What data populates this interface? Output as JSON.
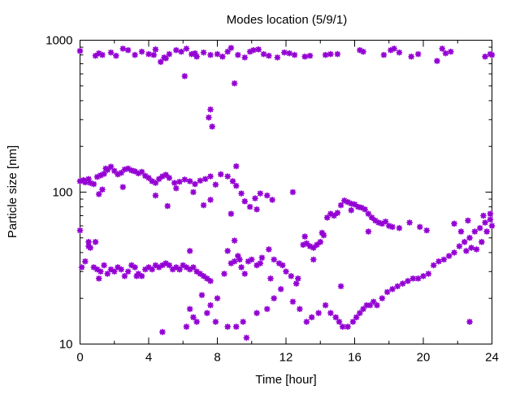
{
  "chart_data": {
    "type": "scatter",
    "title": "Modes location (5/9/1)",
    "xlabel": "Time [hour]",
    "ylabel": "Particle size [nm]",
    "xlim": [
      0,
      24
    ],
    "ylim": [
      10,
      1000
    ],
    "yscale": "log",
    "x_ticks": [
      0,
      4,
      8,
      12,
      16,
      20,
      24
    ],
    "x_tick_labels": [
      "0",
      "4",
      "8",
      "12",
      "16",
      "20",
      "24"
    ],
    "y_ticks": [
      10,
      100,
      1000
    ],
    "y_tick_labels": [
      "10",
      "100",
      "1000"
    ],
    "grid": false,
    "marker_color": "#9400d3",
    "series": [
      {
        "points": [
          [
            0.0,
            850
          ],
          [
            0.9,
            790
          ],
          [
            1.1,
            820
          ],
          [
            1.3,
            800
          ],
          [
            1.8,
            830
          ],
          [
            2.1,
            790
          ],
          [
            2.5,
            880
          ],
          [
            2.8,
            860
          ],
          [
            3.2,
            800
          ],
          [
            3.6,
            840
          ],
          [
            4.0,
            810
          ],
          [
            4.4,
            870
          ],
          [
            4.7,
            720
          ],
          [
            4.9,
            770
          ],
          [
            5.2,
            810
          ],
          [
            5.6,
            860
          ],
          [
            5.9,
            840
          ],
          [
            6.2,
            880
          ],
          [
            6.5,
            810
          ],
          [
            6.8,
            780
          ],
          [
            7.2,
            830
          ],
          [
            7.6,
            800
          ],
          [
            8.0,
            810
          ],
          [
            8.3,
            780
          ],
          [
            8.6,
            840
          ],
          [
            8.8,
            890
          ],
          [
            9.2,
            800
          ],
          [
            9.6,
            770
          ],
          [
            9.9,
            840
          ],
          [
            10.1,
            860
          ],
          [
            10.4,
            870
          ],
          [
            10.7,
            810
          ],
          [
            11.0,
            790
          ],
          [
            11.5,
            770
          ],
          [
            11.9,
            830
          ],
          [
            12.2,
            820
          ],
          [
            12.5,
            800
          ],
          [
            13.1,
            780
          ],
          [
            13.4,
            790
          ],
          [
            14.3,
            800
          ],
          [
            14.6,
            810
          ],
          [
            16.3,
            860
          ],
          [
            16.5,
            840
          ],
          [
            17.7,
            800
          ],
          [
            18.1,
            860
          ],
          [
            18.3,
            880
          ],
          [
            18.6,
            830
          ],
          [
            19.3,
            780
          ],
          [
            19.7,
            810
          ],
          [
            20.8,
            730
          ],
          [
            21.1,
            880
          ],
          [
            21.3,
            820
          ],
          [
            21.6,
            840
          ],
          [
            23.6,
            780
          ],
          [
            23.9,
            810
          ],
          [
            24.0,
            800
          ],
          [
            6.1,
            580
          ],
          [
            7.6,
            350
          ],
          [
            7.5,
            310
          ],
          [
            7.7,
            270
          ],
          [
            9.0,
            520
          ],
          [
            4.3,
            800
          ],
          [
            5.0,
            760
          ],
          [
            6.7,
            820
          ],
          [
            15.0,
            810
          ],
          [
            0.0,
            118
          ],
          [
            0.3,
            116
          ],
          [
            0.6,
            115
          ],
          [
            0.8,
            113
          ],
          [
            1.0,
            126
          ],
          [
            1.2,
            129
          ],
          [
            1.4,
            132
          ],
          [
            1.6,
            140
          ],
          [
            1.8,
            147
          ],
          [
            2.0,
            138
          ],
          [
            2.2,
            131
          ],
          [
            2.4,
            134
          ],
          [
            2.6,
            141
          ],
          [
            2.8,
            143
          ],
          [
            3.0,
            139
          ],
          [
            3.2,
            137
          ],
          [
            3.4,
            133
          ],
          [
            3.6,
            136
          ],
          [
            3.8,
            128
          ],
          [
            4.0,
            124
          ],
          [
            4.2,
            118
          ],
          [
            4.4,
            115
          ],
          [
            4.6,
            122
          ],
          [
            4.8,
            127
          ],
          [
            5.0,
            130
          ],
          [
            5.2,
            124
          ],
          [
            5.5,
            115
          ],
          [
            5.8,
            117
          ],
          [
            6.1,
            121
          ],
          [
            6.4,
            118
          ],
          [
            6.7,
            113
          ],
          [
            7.0,
            119
          ],
          [
            7.3,
            122
          ],
          [
            7.6,
            127
          ],
          [
            7.9,
            112
          ],
          [
            8.2,
            131
          ],
          [
            8.6,
            127
          ],
          [
            8.9,
            118
          ],
          [
            9.1,
            148
          ],
          [
            9.4,
            98
          ],
          [
            9.6,
            87
          ],
          [
            9.9,
            80
          ],
          [
            10.2,
            91
          ],
          [
            10.5,
            98
          ],
          [
            10.9,
            95
          ],
          [
            11.2,
            89
          ],
          [
            12.4,
            100
          ],
          [
            0.5,
            122
          ],
          [
            1.3,
            104
          ],
          [
            1.1,
            97
          ],
          [
            2.5,
            108
          ],
          [
            4.4,
            95
          ],
          [
            5.1,
            81
          ],
          [
            5.6,
            106
          ],
          [
            6.6,
            100
          ],
          [
            7.2,
            82
          ],
          [
            7.6,
            89
          ],
          [
            8.8,
            72
          ],
          [
            9.1,
            110
          ],
          [
            10.3,
            77
          ],
          [
            0.2,
            120
          ],
          [
            1.5,
            143
          ],
          [
            0.0,
            56
          ],
          [
            0.1,
            32
          ],
          [
            0.3,
            35
          ],
          [
            0.5,
            47
          ],
          [
            0.6,
            43
          ],
          [
            0.8,
            32
          ],
          [
            1.0,
            31
          ],
          [
            1.2,
            30
          ],
          [
            1.4,
            33
          ],
          [
            1.6,
            29
          ],
          [
            1.8,
            31
          ],
          [
            2.0,
            30
          ],
          [
            2.2,
            32
          ],
          [
            2.4,
            31
          ],
          [
            2.6,
            28
          ],
          [
            2.8,
            30
          ],
          [
            3.0,
            33
          ],
          [
            3.2,
            32
          ],
          [
            3.4,
            29
          ],
          [
            3.6,
            28
          ],
          [
            3.8,
            31
          ],
          [
            4.0,
            32
          ],
          [
            4.2,
            31
          ],
          [
            4.4,
            33
          ],
          [
            4.6,
            32
          ],
          [
            4.8,
            33
          ],
          [
            5.0,
            34
          ],
          [
            5.2,
            33
          ],
          [
            5.4,
            31
          ],
          [
            5.6,
            32
          ],
          [
            5.8,
            31
          ],
          [
            6.0,
            33
          ],
          [
            6.2,
            32
          ],
          [
            6.4,
            31
          ],
          [
            6.6,
            32
          ],
          [
            6.8,
            30
          ],
          [
            7.0,
            29
          ],
          [
            7.2,
            28
          ],
          [
            7.4,
            27
          ],
          [
            7.6,
            26
          ],
          [
            8.6,
            41
          ],
          [
            8.8,
            34
          ],
          [
            9.0,
            35
          ],
          [
            9.2,
            38
          ],
          [
            9.4,
            32
          ],
          [
            9.6,
            29
          ],
          [
            9.8,
            35
          ],
          [
            10.0,
            36
          ],
          [
            10.3,
            33
          ],
          [
            10.6,
            37
          ],
          [
            11.0,
            42
          ],
          [
            11.3,
            36
          ],
          [
            11.6,
            34
          ],
          [
            12.0,
            30
          ],
          [
            12.3,
            28
          ],
          [
            12.6,
            25
          ],
          [
            13.0,
            45
          ],
          [
            13.2,
            46
          ],
          [
            13.4,
            44
          ],
          [
            13.6,
            43
          ],
          [
            13.8,
            45
          ],
          [
            14.0,
            47
          ],
          [
            14.2,
            52
          ],
          [
            14.4,
            68
          ],
          [
            14.6,
            72
          ],
          [
            14.8,
            70
          ],
          [
            15.0,
            73
          ],
          [
            15.2,
            82
          ],
          [
            15.4,
            88
          ],
          [
            15.6,
            86
          ],
          [
            15.8,
            84
          ],
          [
            16.0,
            83
          ],
          [
            16.2,
            80
          ],
          [
            16.4,
            79
          ],
          [
            16.6,
            77
          ],
          [
            16.8,
            72
          ],
          [
            17.0,
            68
          ],
          [
            17.2,
            65
          ],
          [
            17.4,
            63
          ],
          [
            17.6,
            62
          ],
          [
            17.8,
            64
          ],
          [
            18.0,
            60
          ],
          [
            18.2,
            59
          ],
          [
            18.6,
            58
          ],
          [
            19.2,
            63
          ],
          [
            19.8,
            59
          ],
          [
            20.2,
            56
          ],
          [
            15.8,
            76
          ],
          [
            16.8,
            55
          ],
          [
            0.5,
            44
          ],
          [
            0.9,
            47
          ],
          [
            1.1,
            27
          ],
          [
            3.3,
            28
          ],
          [
            5.8,
            31
          ],
          [
            6.4,
            41
          ],
          [
            8.0,
            20
          ],
          [
            8.4,
            29
          ],
          [
            9.0,
            48
          ],
          [
            9.3,
            36
          ],
          [
            10.5,
            34
          ],
          [
            11.1,
            27
          ],
          [
            11.8,
            33
          ],
          [
            12.7,
            27
          ],
          [
            13.1,
            51
          ],
          [
            13.6,
            36
          ],
          [
            14.1,
            54
          ],
          [
            4.8,
            12
          ],
          [
            6.2,
            13
          ],
          [
            6.4,
            17
          ],
          [
            6.6,
            15
          ],
          [
            6.8,
            14
          ],
          [
            7.1,
            21
          ],
          [
            7.4,
            16
          ],
          [
            7.6,
            18
          ],
          [
            7.9,
            14
          ],
          [
            8.6,
            13
          ],
          [
            9.1,
            13
          ],
          [
            9.5,
            14
          ],
          [
            10.3,
            16
          ],
          [
            10.9,
            17
          ],
          [
            11.3,
            20
          ],
          [
            11.7,
            23
          ],
          [
            12.4,
            19
          ],
          [
            12.8,
            17
          ],
          [
            13.2,
            14
          ],
          [
            13.5,
            15
          ],
          [
            13.9,
            16
          ],
          [
            14.3,
            18
          ],
          [
            14.6,
            16
          ],
          [
            14.9,
            15
          ],
          [
            15.1,
            14
          ],
          [
            15.3,
            13
          ],
          [
            15.6,
            13
          ],
          [
            15.9,
            14
          ],
          [
            16.1,
            15
          ],
          [
            16.3,
            16
          ],
          [
            16.5,
            17
          ],
          [
            16.7,
            18
          ],
          [
            16.9,
            18
          ],
          [
            17.1,
            19
          ],
          [
            17.3,
            18
          ],
          [
            17.6,
            20
          ],
          [
            17.9,
            22
          ],
          [
            18.2,
            23
          ],
          [
            18.5,
            24
          ],
          [
            18.8,
            25
          ],
          [
            19.1,
            26
          ],
          [
            19.4,
            27
          ],
          [
            19.7,
            27
          ],
          [
            20.0,
            28
          ],
          [
            20.3,
            29
          ],
          [
            20.6,
            33
          ],
          [
            20.9,
            35
          ],
          [
            21.2,
            36
          ],
          [
            21.5,
            38
          ],
          [
            21.8,
            40
          ],
          [
            22.1,
            44
          ],
          [
            22.4,
            47
          ],
          [
            22.7,
            50
          ],
          [
            23.0,
            55
          ],
          [
            23.3,
            58
          ],
          [
            23.6,
            63
          ],
          [
            23.9,
            66
          ],
          [
            22.5,
            41
          ],
          [
            22.8,
            43
          ],
          [
            23.1,
            42
          ],
          [
            23.4,
            47
          ],
          [
            23.7,
            55
          ],
          [
            24.0,
            60
          ],
          [
            21.8,
            62
          ],
          [
            22.2,
            55
          ],
          [
            22.6,
            65
          ],
          [
            23.5,
            70
          ],
          [
            23.9,
            72
          ],
          [
            22.7,
            14
          ],
          [
            15.2,
            24
          ],
          [
            9.7,
            11
          ]
        ]
      }
    ]
  }
}
